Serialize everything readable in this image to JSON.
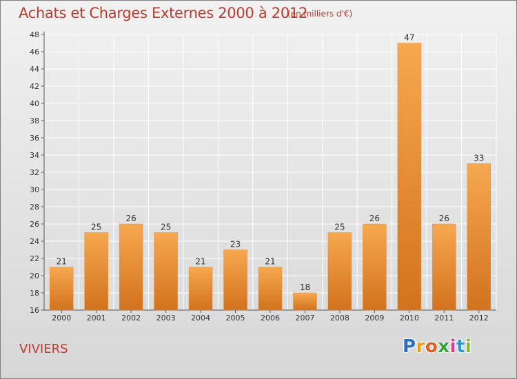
{
  "header": {
    "title": "Achats et Charges Externes 2000 à 2012",
    "subtitle": "(en milliers d'€)"
  },
  "footer": {
    "city": "VIVIERS",
    "logo": "Proxiti"
  },
  "colors": {
    "title": "#c0392b",
    "bar_light": "#f6a850",
    "bar_dark": "#d2721c",
    "grid": "#ffffff"
  },
  "chart_data": {
    "type": "bar",
    "title": "Achats et Charges Externes 2000 à 2012",
    "subtitle": "(en milliers d'€)",
    "categories": [
      "2000",
      "2001",
      "2002",
      "2003",
      "2004",
      "2005",
      "2006",
      "2007",
      "2008",
      "2009",
      "2010",
      "2011",
      "2012"
    ],
    "values": [
      21,
      25,
      26,
      25,
      21,
      23,
      21,
      18,
      25,
      26,
      47,
      26,
      33
    ],
    "ylim": [
      16,
      48
    ],
    "yticks": [
      16,
      18,
      20,
      22,
      24,
      26,
      28,
      30,
      32,
      34,
      36,
      38,
      40,
      42,
      44,
      46,
      48
    ],
    "grid": true,
    "data_labels": true,
    "legend": "none"
  }
}
